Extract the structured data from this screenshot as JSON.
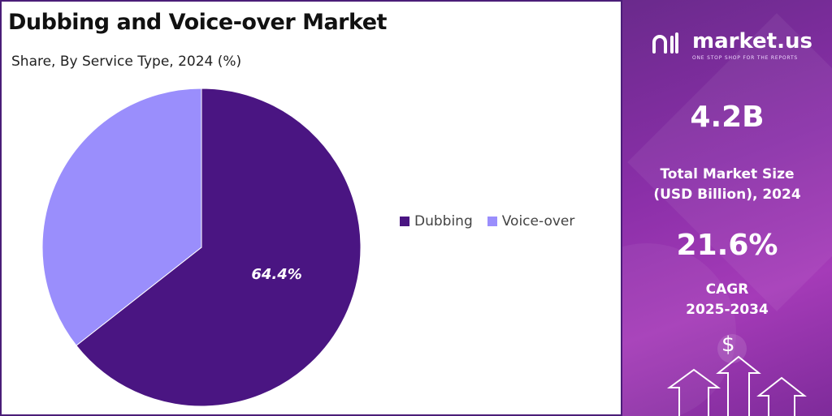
{
  "title": "Dubbing and Voice-over Market",
  "subtitle": "Share, By Service Type, 2024 (%)",
  "chart_data": {
    "type": "pie",
    "slices": [
      {
        "name": "Dubbing",
        "value": 64.4,
        "label": "64.4%",
        "color": "#4a1582"
      },
      {
        "name": "Voice-over",
        "value": 35.6,
        "label": "",
        "color": "#9a8efc"
      }
    ],
    "legend_position": "right"
  },
  "legend": [
    {
      "label": "Dubbing",
      "color": "#4a1582"
    },
    {
      "label": "Voice-over",
      "color": "#9a8efc"
    }
  ],
  "sidebar": {
    "brand_name": "market.us",
    "brand_tagline": "ONE STOP SHOP FOR THE REPORTS",
    "market_size_value": "4.2B",
    "market_size_label_line1": "Total Market Size",
    "market_size_label_line2": "(USD Billion), 2024",
    "cagr_value": "21.6%",
    "cagr_label_line1": "CAGR",
    "cagr_label_line2": "2025-2034",
    "currency_symbol": "$"
  }
}
